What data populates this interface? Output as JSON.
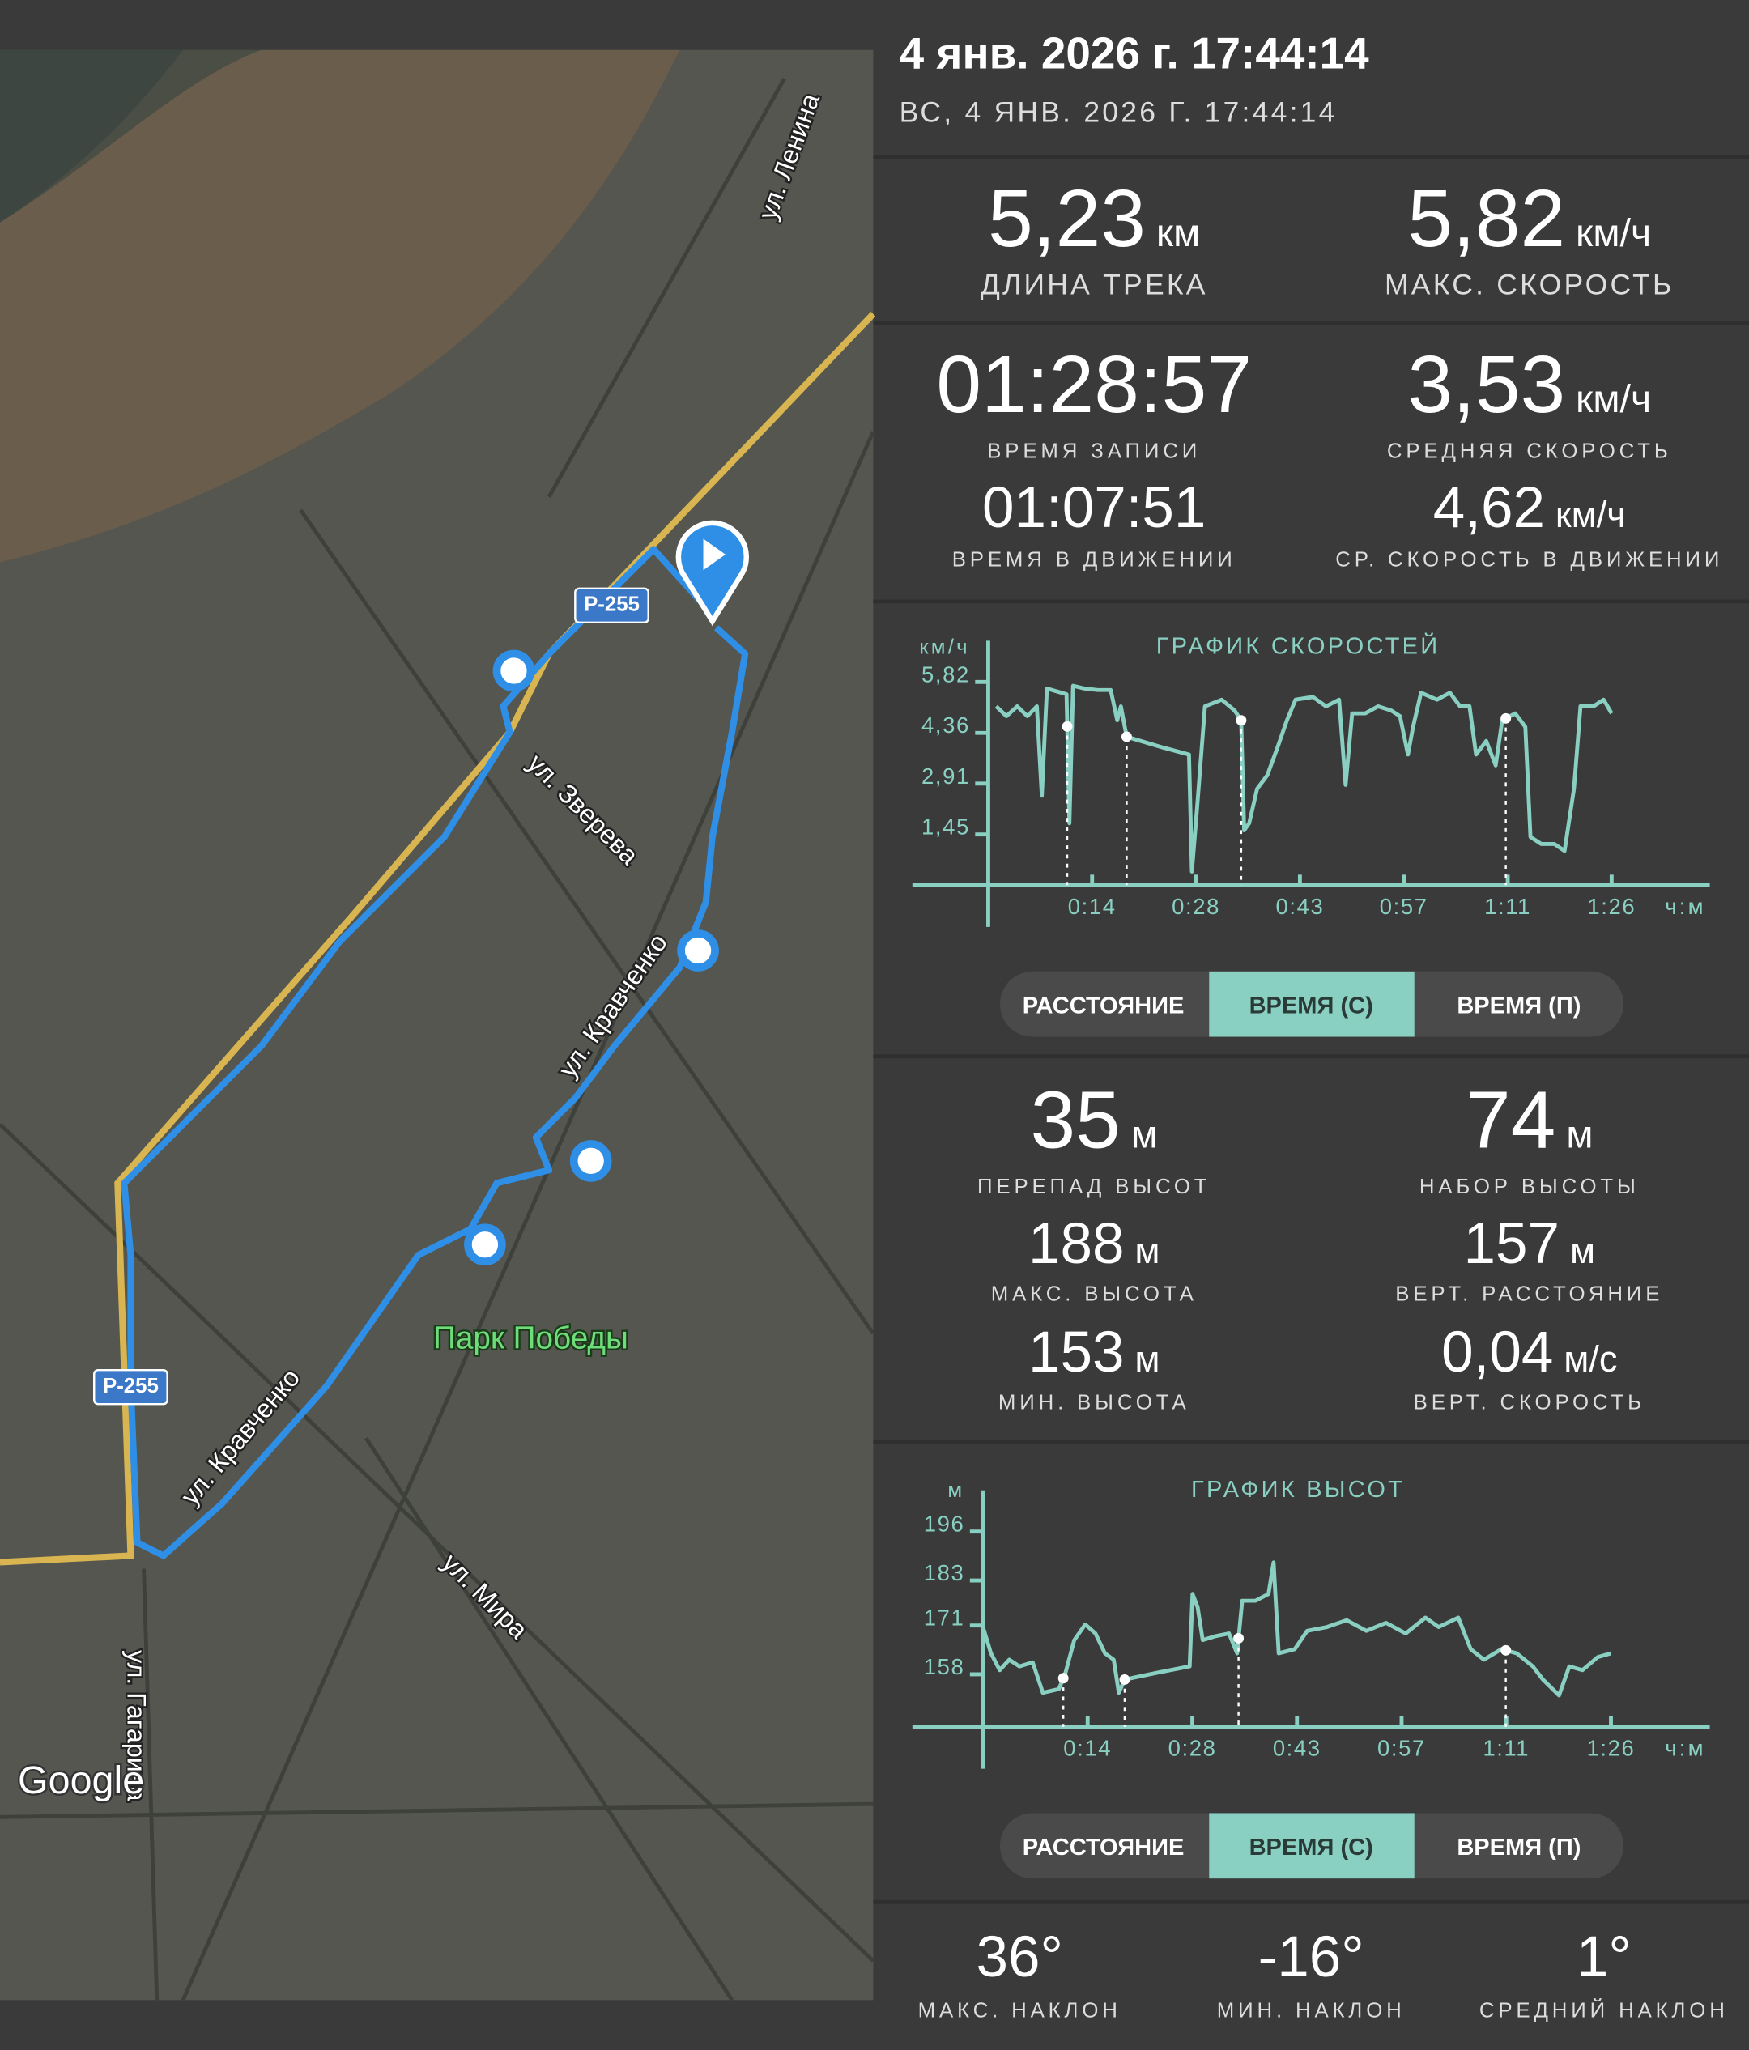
{
  "header": {
    "title": "4 янв. 2026 г. 17:44:14",
    "subtitle": "ВС, 4 ЯНВ. 2026 Г. 17:44:14"
  },
  "map": {
    "labels": [
      "ул. Ленина",
      "Р-255",
      "ул. Зверева",
      "ул. Кравченко",
      "Парк Победы",
      "Р-255",
      "ул. Кравченко",
      "ул. Мира",
      "ул. Гагарина"
    ],
    "logo": "Google"
  },
  "stats": [
    {
      "value": "5,23",
      "unit": "км",
      "label": "ДЛИНА ТРЕКА"
    },
    {
      "value": "5,82",
      "unit": "км/ч",
      "label": "МАКС. СКОРОСТЬ"
    },
    {
      "value": "01:28:57",
      "label": "ВРЕМЯ ЗАПИСИ"
    },
    {
      "value": "3,53",
      "unit": "км/ч",
      "label": "СРЕДНЯЯ СКОРОСТЬ"
    },
    {
      "value": "01:07:51",
      "label": "ВРЕМЯ В ДВИЖЕНИИ"
    },
    {
      "value": "4,62",
      "unit": "км/ч",
      "label": "СР. СКОРОСТЬ В ДВИЖЕНИИ"
    },
    {
      "value": "35",
      "unit": "м",
      "label": "ПЕРЕПАД ВЫСОТ"
    },
    {
      "value": "74",
      "unit": "м",
      "label": "НАБОР ВЫСОТЫ"
    },
    {
      "value": "188",
      "unit": "м",
      "label": "МАКС. ВЫСОТА"
    },
    {
      "value": "157",
      "unit": "м",
      "label": "ВЕРТ. РАССТОЯНИЕ"
    },
    {
      "value": "153",
      "unit": "м",
      "label": "МИН. ВЫСОТА"
    },
    {
      "value": "0,04",
      "unit": "м/с",
      "label": "ВЕРТ. СКОРОСТЬ"
    },
    {
      "value": "36°",
      "label": "МАКС. НАКЛОН"
    },
    {
      "value": "-16°",
      "label": "МИН. НАКЛОН"
    },
    {
      "value": "1°",
      "label": "СРЕДНИЙ НАКЛОН"
    }
  ],
  "toggles": [
    {
      "options": [
        "РАССТОЯНИЕ",
        "ВРЕМЯ (С)",
        "ВРЕМЯ (П)"
      ],
      "selected": 1
    },
    {
      "options": [
        "РАССТОЯНИЕ",
        "ВРЕМЯ (С)",
        "ВРЕМЯ (П)"
      ],
      "selected": 1
    }
  ],
  "chart_data": [
    {
      "type": "line",
      "title": "ГРАФИК СКОРОСТЕЙ",
      "ylabel": "км/ч",
      "xlabel": "ч:м",
      "color": "#8ad0c2",
      "xlim": [
        0,
        99
      ],
      "ylim": [
        0,
        7
      ],
      "xticks": [
        {
          "value": 14.33,
          "label": "0:14"
        },
        {
          "value": 28.67,
          "label": "0:28"
        },
        {
          "value": 43,
          "label": "0:43"
        },
        {
          "value": 57.33,
          "label": "0:57"
        },
        {
          "value": 71.67,
          "label": "1:11"
        },
        {
          "value": 86,
          "label": "1:26"
        }
      ],
      "yticks": [
        {
          "value": 5.82,
          "label": "5,82"
        },
        {
          "value": 4.36,
          "label": "4,36"
        },
        {
          "value": 2.91,
          "label": "2,91"
        },
        {
          "value": 1.45,
          "label": "1,45"
        }
      ],
      "x": [
        1.1,
        2.5,
        4.0,
        5.4,
        6.7,
        7.4,
        8.1,
        10.1,
        10.8,
        11.2,
        11.7,
        13.3,
        15.1,
        16.9,
        17.8,
        18.3,
        19.1,
        24.1,
        27.7,
        28.1,
        28.8,
        29.9,
        32.2,
        34.0,
        34.9,
        35.3,
        36.0,
        37.1,
        38.5,
        39.9,
        41.2,
        42.4,
        44.8,
        46.6,
        48.4,
        49.3,
        50.2,
        52.0,
        53.8,
        55.6,
        56.8,
        57.9,
        58.6,
        59.7,
        61.9,
        63.7,
        65.1,
        66.4,
        67.3,
        68.7,
        70.0,
        70.9,
        72.7,
        74.1,
        74.8,
        76.3,
        78.1,
        79.5,
        80.8,
        81.7,
        83.5,
        84.9,
        86.0
      ],
      "values": [
        5.12,
        4.84,
        5.12,
        4.84,
        5.12,
        2.56,
        5.63,
        5.51,
        5.47,
        1.77,
        5.71,
        5.63,
        5.59,
        5.59,
        4.72,
        5.12,
        4.25,
        3.94,
        3.74,
        0.39,
        2.17,
        5.12,
        5.31,
        5.0,
        4.72,
        1.57,
        1.77,
        2.76,
        3.15,
        3.94,
        4.72,
        5.31,
        5.39,
        5.12,
        5.31,
        2.87,
        4.92,
        4.92,
        5.12,
        5.0,
        4.84,
        3.74,
        4.53,
        5.51,
        5.31,
        5.51,
        5.12,
        5.12,
        3.74,
        4.13,
        3.43,
        4.72,
        4.92,
        4.53,
        1.38,
        1.18,
        1.18,
        0.98,
        2.76,
        5.12,
        5.12,
        5.31,
        4.92
      ],
      "markers": [
        10.9,
        19.1,
        34.9,
        71.4
      ]
    },
    {
      "type": "line",
      "title": "ГРАФИК ВЫСОТ",
      "ylabel": "м",
      "xlabel": "ч:м",
      "color": "#8ad0c2",
      "xlim": [
        0,
        99
      ],
      "ylim": [
        144,
        207
      ],
      "xticks": [
        {
          "value": 14.33,
          "label": "0:14"
        },
        {
          "value": 28.67,
          "label": "0:28"
        },
        {
          "value": 43,
          "label": "0:43"
        },
        {
          "value": 57.33,
          "label": "0:57"
        },
        {
          "value": 71.67,
          "label": "1:11"
        },
        {
          "value": 86,
          "label": "1:26"
        }
      ],
      "yticks": [
        196,
        183,
        171,
        158
      ],
      "x": [
        0,
        1.1,
        2.3,
        3.6,
        5.0,
        6.8,
        8.2,
        10.4,
        11.3,
        12.5,
        14.0,
        15.4,
        16.7,
        17.9,
        18.6,
        19.4,
        23.8,
        28.3,
        28.7,
        29.4,
        30.1,
        31.9,
        33.7,
        34.8,
        35.5,
        37.3,
        39.1,
        39.8,
        40.5,
        42.7,
        44.4,
        47.1,
        49.8,
        52.5,
        55.2,
        57.9,
        60.6,
        62.4,
        65.1,
        66.8,
        68.6,
        71.0,
        73.1,
        75.3,
        76.7,
        78.9,
        80.3,
        82.1,
        84.2,
        86.0
      ],
      "values": [
        170.6,
        163.6,
        159.1,
        161.9,
        160.1,
        161.2,
        153.1,
        154.1,
        158.4,
        167.1,
        171.3,
        168.9,
        163.6,
        161.9,
        153.1,
        156.6,
        158.4,
        160.1,
        179.4,
        175.9,
        167.1,
        168.2,
        168.9,
        163.6,
        177.6,
        177.6,
        179.4,
        187.8,
        163.6,
        164.7,
        169.6,
        170.6,
        172.4,
        169.6,
        171.7,
        168.9,
        173.1,
        170.6,
        173.1,
        164.7,
        161.9,
        164.7,
        163.6,
        160.1,
        156.6,
        152.4,
        160.1,
        159.1,
        162.6,
        163.6
      ],
      "markers": [
        11,
        19.4,
        35,
        71.6
      ]
    }
  ]
}
